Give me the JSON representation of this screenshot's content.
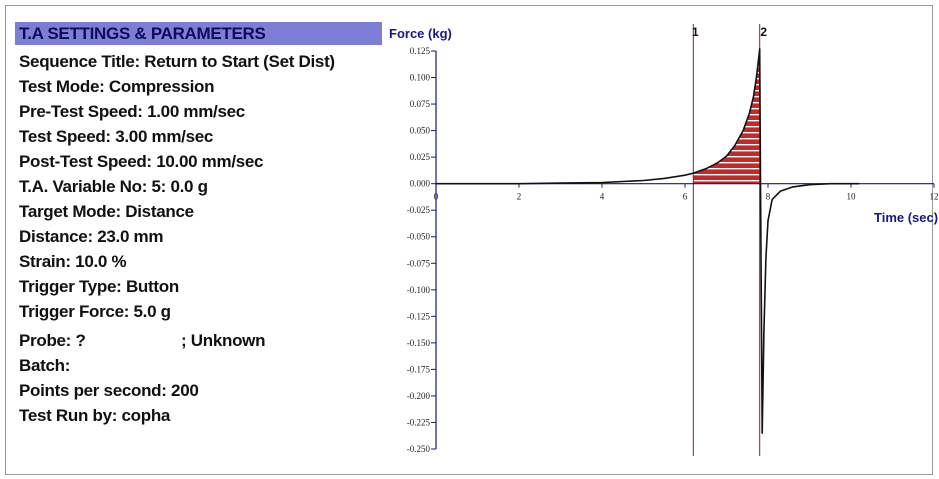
{
  "settings": {
    "title": "T.A SETTINGS & PARAMETERS",
    "lines": [
      "Sequence Title: Return to Start (Set Dist)",
      "Test Mode: Compression",
      "Pre-Test Speed: 1.00 mm/sec",
      "Test Speed: 3.00 mm/sec",
      "Post-Test Speed: 10.00 mm/sec",
      "T.A. Variable No: 5: 0.0 g",
      "Target Mode: Distance",
      "Distance: 23.0 mm",
      "Strain: 10.0 %",
      "Trigger Type: Button",
      "Trigger Force: 5.0 g"
    ],
    "probe_label": "Probe: ?",
    "probe_value": "; Unknown",
    "lines2": [
      "Batch:",
      "Points per second: 200",
      "Test Run by: copha"
    ]
  },
  "chart_data": {
    "type": "line",
    "ylabel": "Force (kg)",
    "xlabel": "Time (sec)",
    "xlim": [
      0,
      12
    ],
    "ylim": [
      -0.25,
      0.125
    ],
    "x_ticks": [
      "0",
      "2",
      "4",
      "6",
      "8",
      "10",
      "12"
    ],
    "y_ticks": [
      "0.125",
      "0.100",
      "0.075",
      "0.050",
      "0.025",
      "0.000",
      "-0.025",
      "-0.050",
      "-0.075",
      "-0.100",
      "-0.125",
      "-0.150",
      "-0.175",
      "-0.200",
      "-0.225",
      "-0.250"
    ],
    "markers": [
      {
        "label": "1",
        "x": 6.2
      },
      {
        "label": "2",
        "x": 7.8
      }
    ],
    "shaded_region": {
      "from": 6.2,
      "to": 7.8,
      "color": "#c62828"
    },
    "series": [
      {
        "color": "#111111",
        "points": [
          [
            0,
            0.0
          ],
          [
            1,
            0.0
          ],
          [
            2,
            0.0
          ],
          [
            3,
            0.0005
          ],
          [
            4,
            0.001
          ],
          [
            4.5,
            0.002
          ],
          [
            5,
            0.003
          ],
          [
            5.5,
            0.005
          ],
          [
            6,
            0.008
          ],
          [
            6.2,
            0.01
          ],
          [
            6.5,
            0.014
          ],
          [
            6.8,
            0.02
          ],
          [
            7.0,
            0.026
          ],
          [
            7.2,
            0.036
          ],
          [
            7.4,
            0.05
          ],
          [
            7.55,
            0.066
          ],
          [
            7.65,
            0.082
          ],
          [
            7.72,
            0.1
          ],
          [
            7.78,
            0.12
          ],
          [
            7.8,
            0.127
          ],
          [
            7.82,
            0.0
          ],
          [
            7.84,
            -0.12
          ],
          [
            7.86,
            -0.235
          ],
          [
            7.9,
            -0.14
          ],
          [
            7.95,
            -0.07
          ],
          [
            8.0,
            -0.035
          ],
          [
            8.1,
            -0.015
          ],
          [
            8.3,
            -0.007
          ],
          [
            8.6,
            -0.003
          ],
          [
            9.0,
            -0.001
          ],
          [
            9.5,
            0.0
          ],
          [
            10.2,
            0.0
          ]
        ]
      }
    ],
    "colors": {
      "axis": "#15178a",
      "marker": "#8b2020"
    }
  }
}
